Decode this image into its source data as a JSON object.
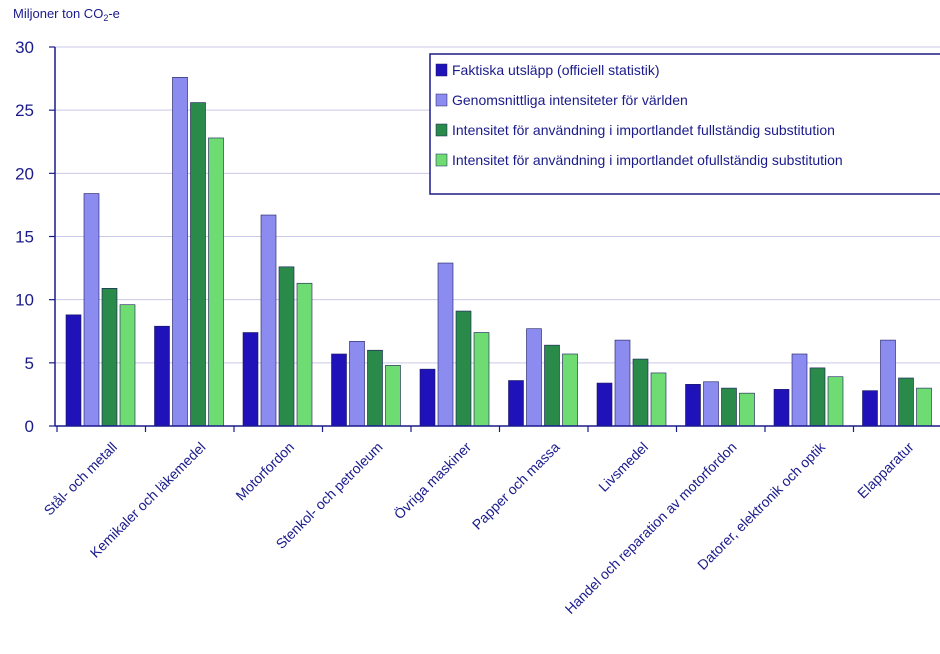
{
  "chart_data": {
    "type": "bar",
    "ylabel": "Miljoner ton CO2-e",
    "ylim": [
      0,
      30
    ],
    "yticks": [
      0,
      5,
      10,
      15,
      20,
      25,
      30
    ],
    "grid": "horizontal",
    "legend_position": "top-right",
    "categories": [
      "Stål- och metall",
      "Kemikaler och läkemedel",
      "Motorfordon",
      "Stenkol- och petroleum",
      "Övriga maskiner",
      "Papper och massa",
      "Livsmedel",
      "Handel och reparation av motorfordon",
      "Datorer, elektronik och optik",
      "Elapparatur"
    ],
    "series": [
      {
        "name": "Faktiska utsläpp (officiell statistik)",
        "color": "#1f12b8",
        "values": [
          8.8,
          7.9,
          7.4,
          5.7,
          4.5,
          3.6,
          3.4,
          3.3,
          2.9,
          2.8
        ]
      },
      {
        "name": "Genomsnittliga intensiteter för världen",
        "color": "#8c8cf0",
        "values": [
          18.4,
          27.6,
          16.7,
          6.7,
          12.9,
          7.7,
          6.8,
          3.5,
          5.7,
          6.8
        ]
      },
      {
        "name": "Intensitet för användning i importlandet fullständig substitution",
        "color": "#2a8a4a",
        "values": [
          10.9,
          25.6,
          12.6,
          6.0,
          9.1,
          6.4,
          5.3,
          3.0,
          4.6,
          3.8
        ]
      },
      {
        "name": "Intensitet för användning i importlandet ofullständig substitution",
        "color": "#6fdc73",
        "values": [
          9.6,
          22.8,
          11.3,
          4.8,
          7.4,
          5.7,
          4.2,
          2.6,
          3.9,
          3.0
        ]
      }
    ]
  }
}
